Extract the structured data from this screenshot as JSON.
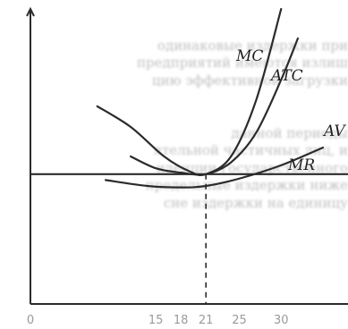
{
  "background_text": [
    "",
    "одинаковые издержки при",
    "предприятий имеются излиш",
    "цию эффективной загрузки",
    "",
    "",
    "данной периоды",
    "ятельной частичных лиц, и",
    "иденции государственного",
    "предельные издержки ниже",
    "сне издержки на единицу",
    ""
  ],
  "chart_data": {
    "type": "line",
    "title": "",
    "xlabel": "",
    "ylabel": "",
    "x_ticks": [
      "0",
      "15",
      "18",
      "21",
      "25",
      "30"
    ],
    "xlim": [
      0,
      38
    ],
    "ylim": [
      0,
      10
    ],
    "equilibrium_x": 21,
    "series": [
      {
        "name": "MC",
        "shape": "U",
        "x": [
          8,
          12,
          16,
          19,
          21,
          24,
          27,
          30
        ],
        "y": [
          6.7,
          6.0,
          5.0,
          4.5,
          4.4,
          5.0,
          6.9,
          10.0
        ]
      },
      {
        "name": "ATC",
        "shape": "U",
        "x": [
          12,
          15,
          18,
          21,
          24,
          27,
          30,
          32
        ],
        "y": [
          5.0,
          4.6,
          4.45,
          4.4,
          4.8,
          5.8,
          7.6,
          9.0
        ]
      },
      {
        "name": "AV",
        "shape": "U",
        "x": [
          9,
          14,
          18,
          21,
          25,
          30,
          35
        ],
        "y": [
          4.2,
          4.0,
          3.95,
          4.0,
          4.25,
          4.7,
          5.3
        ]
      },
      {
        "name": "MR",
        "shape": "flat",
        "x": [
          0,
          38
        ],
        "y": [
          4.4,
          4.4
        ]
      }
    ]
  }
}
